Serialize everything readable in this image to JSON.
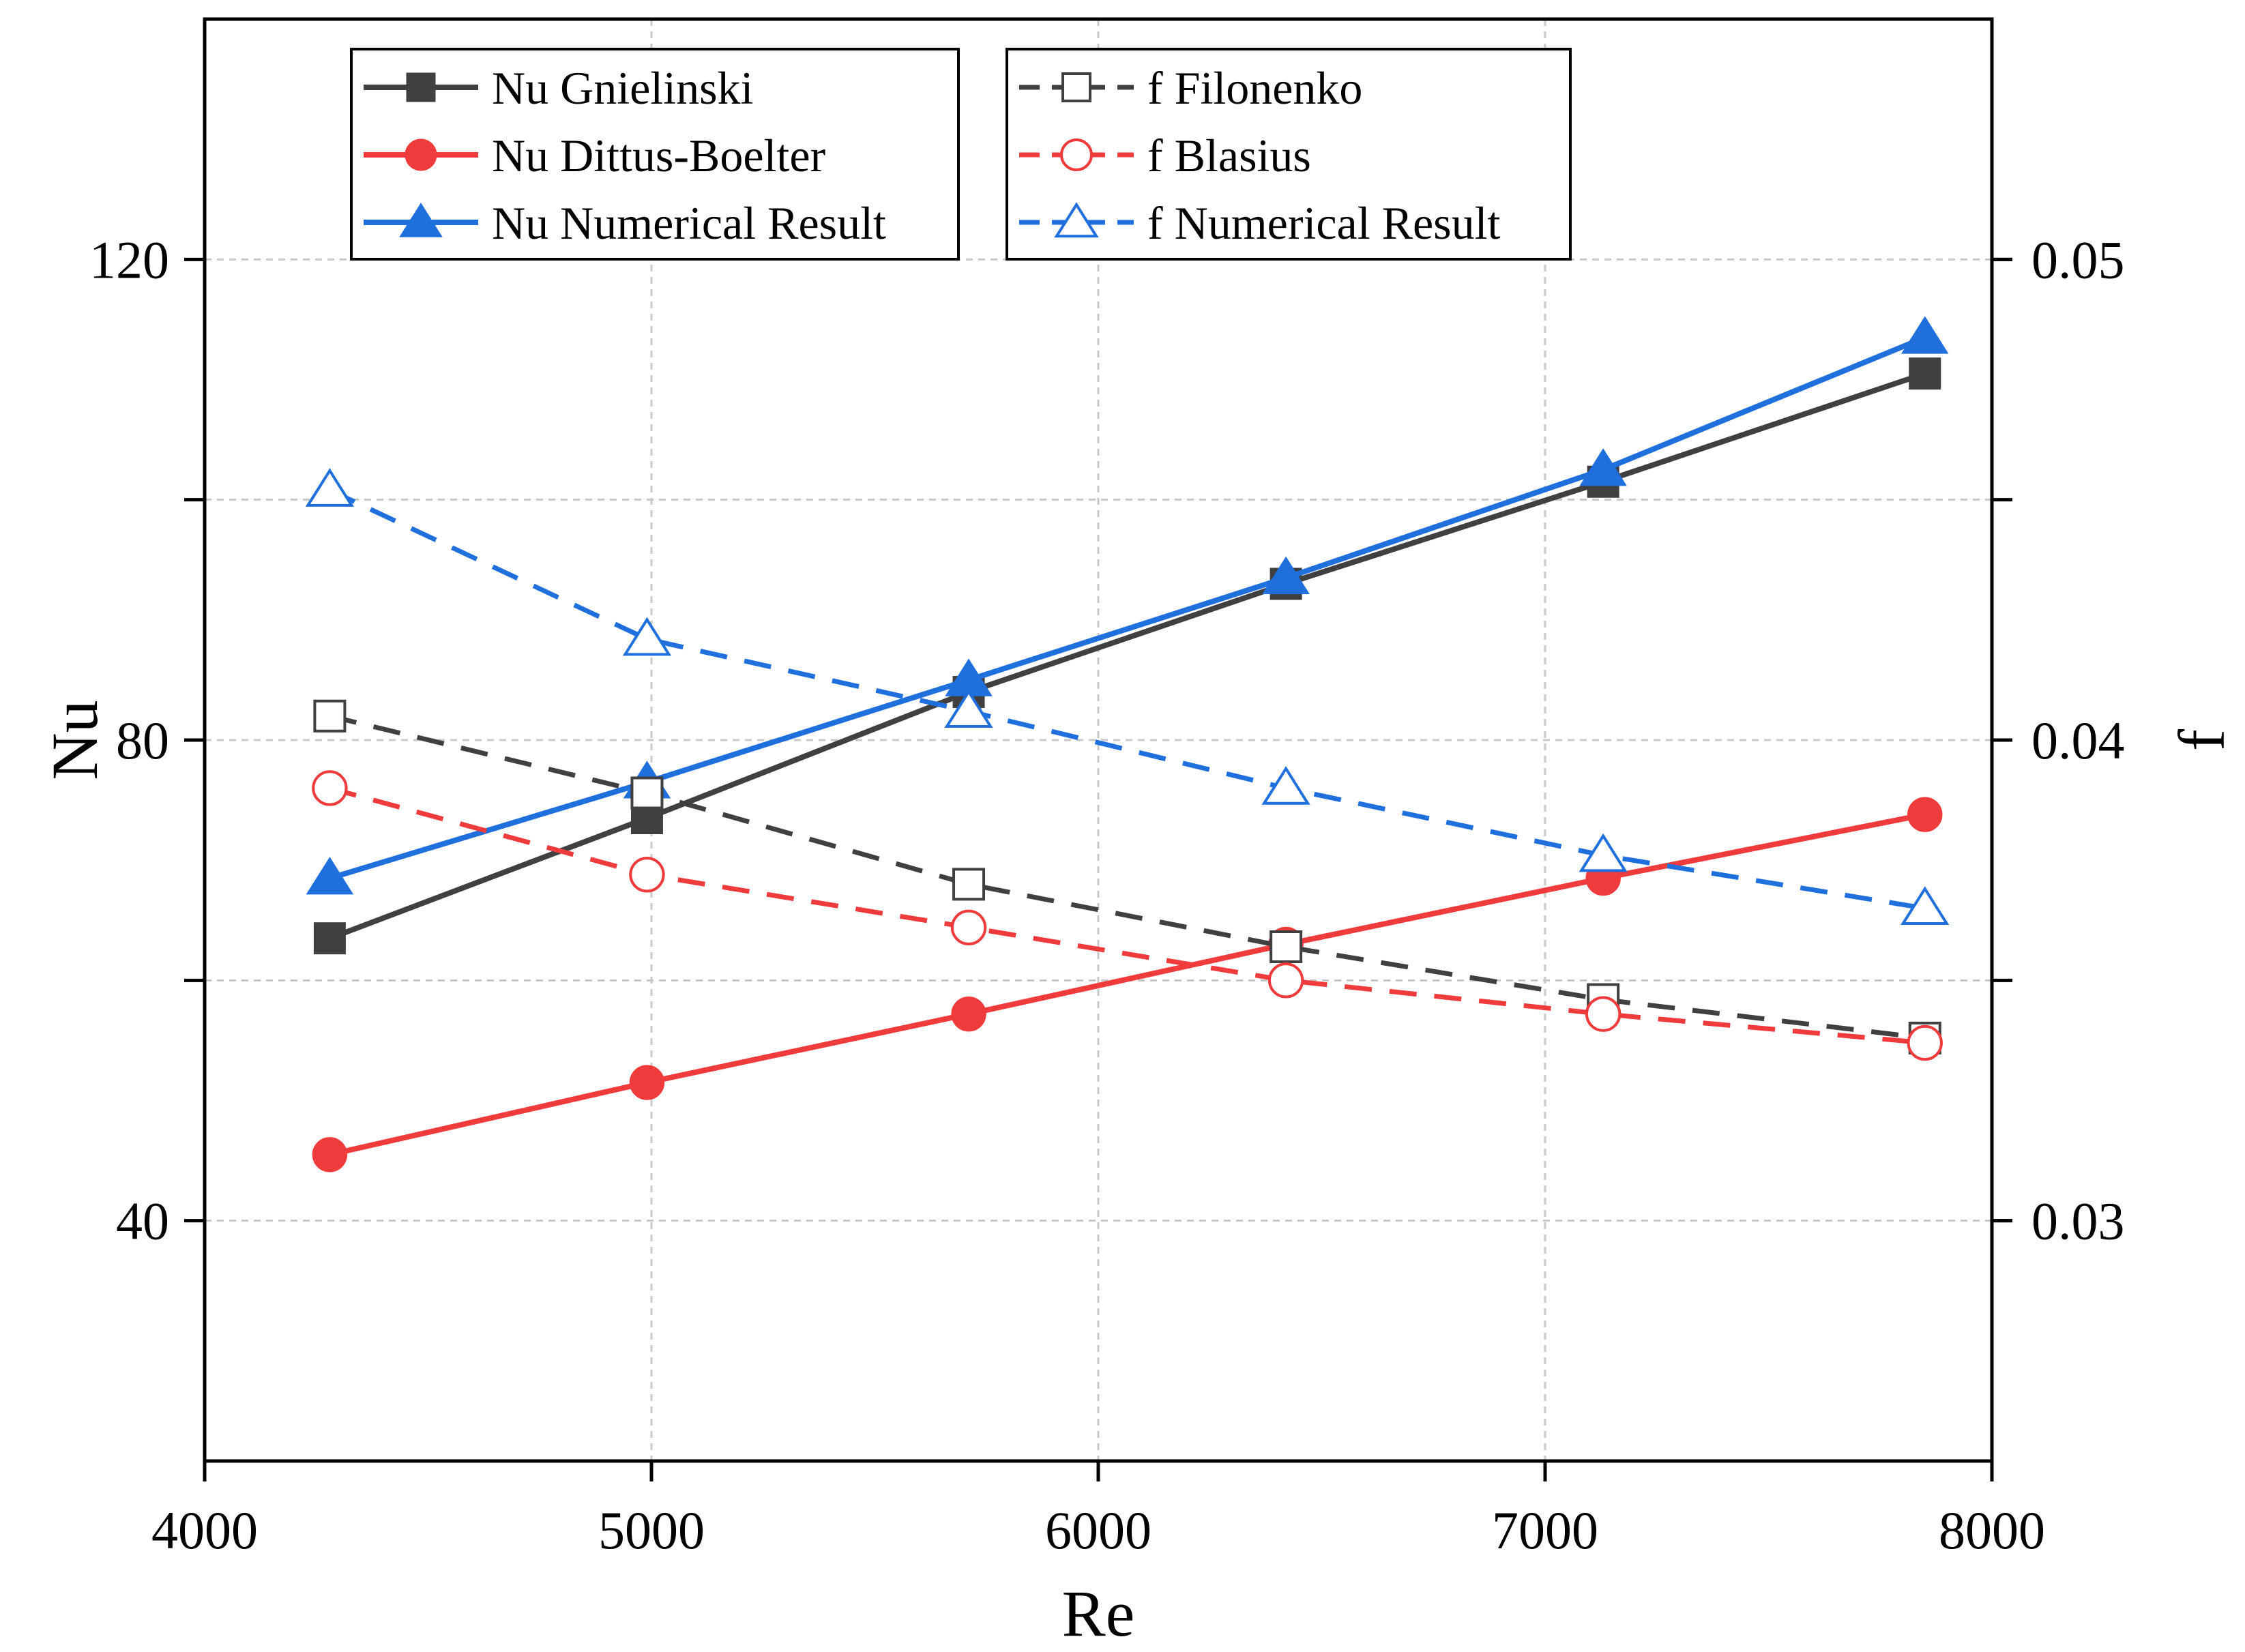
{
  "chart_data": {
    "type": "line",
    "xlabel": "Re",
    "ylabel": "Nu",
    "y2label": "f",
    "xlim": [
      4000,
      8000
    ],
    "ylim": [
      20,
      140
    ],
    "y2lim": [
      0.025,
      0.055
    ],
    "xticks": [
      4000,
      5000,
      6000,
      7000,
      8000
    ],
    "xtick_labels": [
      "4000",
      "5000",
      "6000",
      "7000",
      "8000"
    ],
    "yticks": [
      40,
      80,
      120
    ],
    "ytick_labels": [
      "40",
      "80",
      "120"
    ],
    "y2ticks": [
      0.03,
      0.04,
      0.05
    ],
    "y2tick_labels": [
      "0.03",
      "0.04",
      "0.05"
    ],
    "grid": true,
    "x": [
      4280,
      4990,
      5710,
      6420,
      7130,
      7850
    ],
    "series": [
      {
        "name": "Nu Gnielinski",
        "axis": "left",
        "color": "#404040",
        "marker": "square",
        "filled": true,
        "dashed": false,
        "values": [
          63.5,
          73.5,
          84.0,
          93.0,
          101.5,
          110.5
        ]
      },
      {
        "name": "Nu Dittus-Boelter",
        "axis": "left",
        "color": "#ef3b3b",
        "marker": "circle",
        "filled": true,
        "dashed": false,
        "values": [
          45.5,
          51.5,
          57.2,
          63.0,
          68.5,
          73.8
        ]
      },
      {
        "name": "Nu Numerical Result",
        "axis": "left",
        "color": "#1f6fdc",
        "marker": "triangle",
        "filled": true,
        "dashed": false,
        "values": [
          68.5,
          76.5,
          85.0,
          93.5,
          102.5,
          113.5
        ]
      },
      {
        "name": "f Filonenko",
        "axis": "right",
        "color": "#404040",
        "marker": "square",
        "filled": false,
        "dashed": true,
        "values": [
          0.0405,
          0.0389,
          0.037,
          0.0357,
          0.0346,
          0.0338
        ]
      },
      {
        "name": "f Blasius",
        "axis": "right",
        "color": "#ef3b3b",
        "marker": "circle",
        "filled": false,
        "dashed": true,
        "values": [
          0.039,
          0.0372,
          0.0361,
          0.035,
          0.0343,
          0.0337
        ]
      },
      {
        "name": "f Numerical Result",
        "axis": "right",
        "color": "#1f6fdc",
        "marker": "triangle",
        "filled": false,
        "dashed": true,
        "values": [
          0.0452,
          0.0421,
          0.0406,
          0.039,
          0.0376,
          0.0365
        ]
      }
    ],
    "legend": [
      {
        "group": "left",
        "position": "top-left",
        "entries": [
          "Nu Gnielinski",
          "Nu Dittus-Boelter",
          "Nu Numerical Result"
        ]
      },
      {
        "group": "right",
        "position": "top-center",
        "entries": [
          "f Filonenko",
          "f Blasius",
          "f Numerical Result"
        ]
      }
    ]
  }
}
